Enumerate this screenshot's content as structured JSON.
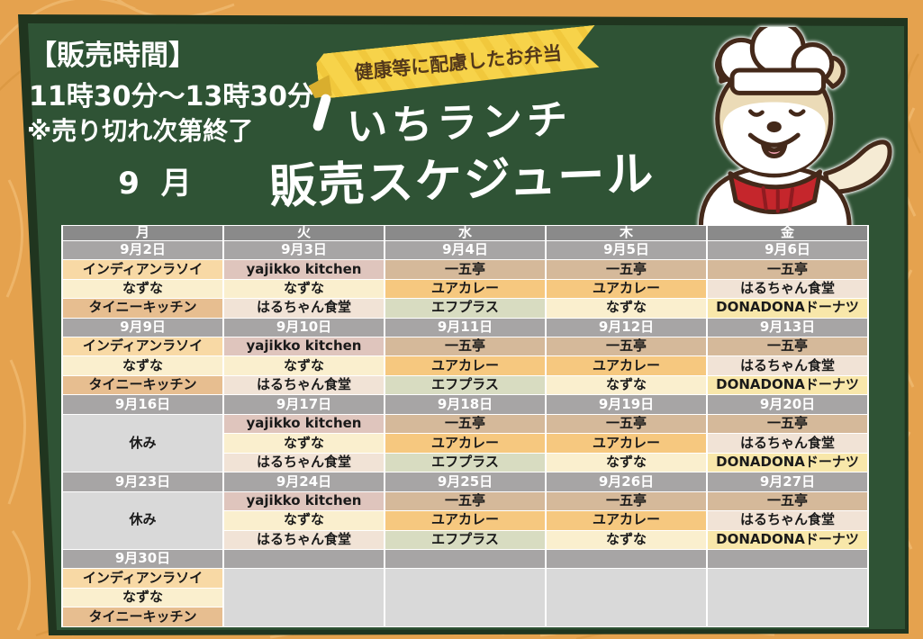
{
  "info": {
    "sales_time_label": "【販売時間】",
    "sales_time": "11時30分～13時30分",
    "sellout_note": "※売り切れ次第終了",
    "month": "9 月"
  },
  "banner": {
    "ribbon_text": "健康等に配慮したお弁当"
  },
  "title": {
    "accent": "ヽ",
    "line1": "いちランチ",
    "line2": "販売スケジュール"
  },
  "colors": {
    "page_bg": "#E5A24E",
    "frame_dark": "#20351F",
    "board_green": "#2F5335",
    "ribbon_yellow": "#F7D34A",
    "ribbon_text": "#54391B",
    "header_gray": "#8A8A8A",
    "date_gray": "#A7A5A5",
    "empty_gray": "#D9D9D9",
    "cell_border": "#FFFFFF",
    "vendors": {
      "インディアンラソイ": "#F8D9A5",
      "yajikko kitchen": "#DFC5BD",
      "なずな": "#FAEFCE",
      "タイニーキッチン": "#E7BE90",
      "はるちゃん食堂": "#F1E3D6",
      "一五亭": "#D5B99A",
      "ユアカレー": "#F6C87F",
      "エフプラス": "#D8DCC1",
      "DONADONAドーナツ": "#F8E7AA",
      "休み": "#D9D9D9"
    }
  },
  "table": {
    "day_headers": [
      "月",
      "火",
      "水",
      "木",
      "金"
    ],
    "weeks": [
      {
        "dates": [
          "9月2日",
          "9月3日",
          "9月4日",
          "9月5日",
          "9月6日"
        ],
        "columns": [
          [
            "インディアンラソイ",
            "なずな",
            "タイニーキッチン"
          ],
          [
            "yajikko kitchen",
            "なずな",
            "はるちゃん食堂"
          ],
          [
            "一五亭",
            "ユアカレー",
            "エフプラス"
          ],
          [
            "一五亭",
            "ユアカレー",
            "なずな"
          ],
          [
            "一五亭",
            "はるちゃん食堂",
            "DONADONAドーナツ"
          ]
        ]
      },
      {
        "dates": [
          "9月9日",
          "9月10日",
          "9月11日",
          "9月12日",
          "9月13日"
        ],
        "columns": [
          [
            "インディアンラソイ",
            "なずな",
            "タイニーキッチン"
          ],
          [
            "yajikko kitchen",
            "なずな",
            "はるちゃん食堂"
          ],
          [
            "一五亭",
            "ユアカレー",
            "エフプラス"
          ],
          [
            "一五亭",
            "ユアカレー",
            "なずな"
          ],
          [
            "一五亭",
            "はるちゃん食堂",
            "DONADONAドーナツ"
          ]
        ]
      },
      {
        "dates": [
          "9月16日",
          "9月17日",
          "9月18日",
          "9月19日",
          "9月20日"
        ],
        "columns": [
          {
            "merged": "休み"
          },
          [
            "yajikko kitchen",
            "なずな",
            "はるちゃん食堂"
          ],
          [
            "一五亭",
            "ユアカレー",
            "エフプラス"
          ],
          [
            "一五亭",
            "ユアカレー",
            "なずな"
          ],
          [
            "一五亭",
            "はるちゃん食堂",
            "DONADONAドーナツ"
          ]
        ]
      },
      {
        "dates": [
          "9月23日",
          "9月24日",
          "9月25日",
          "9月26日",
          "9月27日"
        ],
        "columns": [
          {
            "merged": "休み"
          },
          [
            "yajikko kitchen",
            "なずな",
            "はるちゃん食堂"
          ],
          [
            "一五亭",
            "ユアカレー",
            "エフプラス"
          ],
          [
            "一五亭",
            "ユアカレー",
            "なずな"
          ],
          [
            "一五亭",
            "はるちゃん食堂",
            "DONADONAドーナツ"
          ]
        ]
      },
      {
        "dates": [
          "9月30日",
          "",
          "",
          "",
          ""
        ],
        "columns": [
          [
            "インディアンラソイ",
            "なずな",
            "タイニーキッチン"
          ],
          {
            "merged": ""
          },
          {
            "merged": ""
          },
          {
            "merged": ""
          },
          {
            "merged": ""
          }
        ]
      }
    ]
  }
}
